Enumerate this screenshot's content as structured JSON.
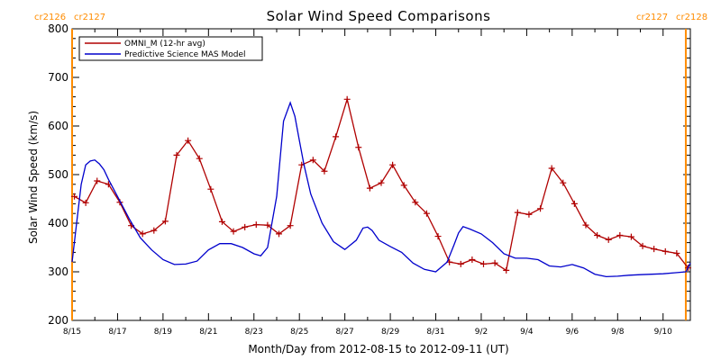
{
  "chart_data": {
    "type": "line",
    "title": "Solar Wind Speed Comparisons",
    "xlabel": "Month/Day from 2012-08-15 to 2012-09-11 (UT)",
    "ylabel": "Solar Wind Speed (km/s)",
    "ylim": [
      200,
      800
    ],
    "xlim_days": [
      0,
      27.2
    ],
    "yticks": [
      200,
      300,
      400,
      500,
      600,
      700,
      800
    ],
    "xticks": [
      {
        "day": 0,
        "label": "8/15"
      },
      {
        "day": 2,
        "label": "8/17"
      },
      {
        "day": 4,
        "label": "8/19"
      },
      {
        "day": 6,
        "label": "8/21"
      },
      {
        "day": 8,
        "label": "8/23"
      },
      {
        "day": 10,
        "label": "8/25"
      },
      {
        "day": 12,
        "label": "8/27"
      },
      {
        "day": 14,
        "label": "8/29"
      },
      {
        "day": 16,
        "label": "8/31"
      },
      {
        "day": 18,
        "label": "9/2"
      },
      {
        "day": 20,
        "label": "9/4"
      },
      {
        "day": 22,
        "label": "9/6"
      },
      {
        "day": 24,
        "label": "9/8"
      },
      {
        "day": 26,
        "label": "9/10"
      }
    ],
    "grid": false,
    "legend": "top-left",
    "carrington_markers": [
      {
        "day": 0,
        "left_label": "cr2126",
        "right_label": "cr2127"
      },
      {
        "day": 27.0,
        "left_label": "cr2127",
        "right_label": "cr2128"
      }
    ],
    "marker_color": "#ff8c00",
    "series": [
      {
        "name": "OMNI_M (12-hr avg)",
        "color": "#b00000",
        "marker": "plus",
        "x": [
          0.1,
          0.6,
          1.1,
          1.6,
          2.1,
          2.6,
          3.1,
          3.6,
          4.1,
          4.6,
          5.1,
          5.6,
          6.1,
          6.6,
          7.1,
          7.6,
          8.1,
          8.6,
          9.1,
          9.6,
          10.1,
          10.6,
          11.1,
          11.6,
          12.1,
          12.6,
          13.1,
          13.6,
          14.1,
          14.6,
          15.1,
          15.6,
          16.1,
          16.6,
          17.1,
          17.6,
          18.1,
          18.6,
          19.1,
          19.6,
          20.1,
          20.6,
          21.1,
          21.6,
          22.1,
          22.6,
          23.1,
          23.6,
          24.1,
          24.6,
          25.1,
          25.6,
          26.1,
          26.6,
          27.1
        ],
        "values": [
          455,
          442,
          487,
          480,
          443,
          395,
          378,
          385,
          404,
          540,
          570,
          533,
          470,
          403,
          383,
          392,
          397,
          396,
          378,
          395,
          520,
          530,
          507,
          578,
          655,
          556,
          472,
          483,
          520,
          478,
          443,
          420,
          373,
          320,
          316,
          325,
          316,
          318,
          303,
          422,
          418,
          430,
          513,
          483,
          440,
          396,
          375,
          366,
          375,
          372,
          353,
          347,
          342,
          338,
          308
        ]
      },
      {
        "name": "Predictive Science MAS Model",
        "color": "#0000cc",
        "marker": "none",
        "x": [
          0,
          0.2,
          0.4,
          0.6,
          0.8,
          1.0,
          1.2,
          1.4,
          1.6,
          2.0,
          2.5,
          3.0,
          3.5,
          4.0,
          4.5,
          5.0,
          5.5,
          6.0,
          6.5,
          7.0,
          7.5,
          8.0,
          8.3,
          8.6,
          9.0,
          9.3,
          9.6,
          9.8,
          10.0,
          10.2,
          10.5,
          11.0,
          11.5,
          12.0,
          12.5,
          12.8,
          13.0,
          13.2,
          13.5,
          14.0,
          14.5,
          15.0,
          15.5,
          16.0,
          16.5,
          16.8,
          17.0,
          17.2,
          17.5,
          18.0,
          18.5,
          19.0,
          19.5,
          20.0,
          20.5,
          21.0,
          21.5,
          22.0,
          22.5,
          23.0,
          23.5,
          24.0,
          24.5,
          25.0,
          25.5,
          26.0,
          26.5,
          27.0,
          27.2
        ],
        "values": [
          320,
          400,
          480,
          520,
          528,
          530,
          522,
          510,
          490,
          455,
          410,
          370,
          345,
          325,
          315,
          316,
          322,
          345,
          358,
          358,
          350,
          337,
          333,
          350,
          455,
          610,
          648,
          620,
          570,
          520,
          460,
          400,
          362,
          346,
          365,
          390,
          392,
          385,
          365,
          352,
          340,
          318,
          305,
          300,
          320,
          355,
          380,
          393,
          388,
          378,
          360,
          337,
          328,
          328,
          325,
          312,
          310,
          315,
          308,
          295,
          290,
          291,
          293,
          294,
          295,
          296,
          298,
          300,
          318
        ]
      }
    ]
  }
}
